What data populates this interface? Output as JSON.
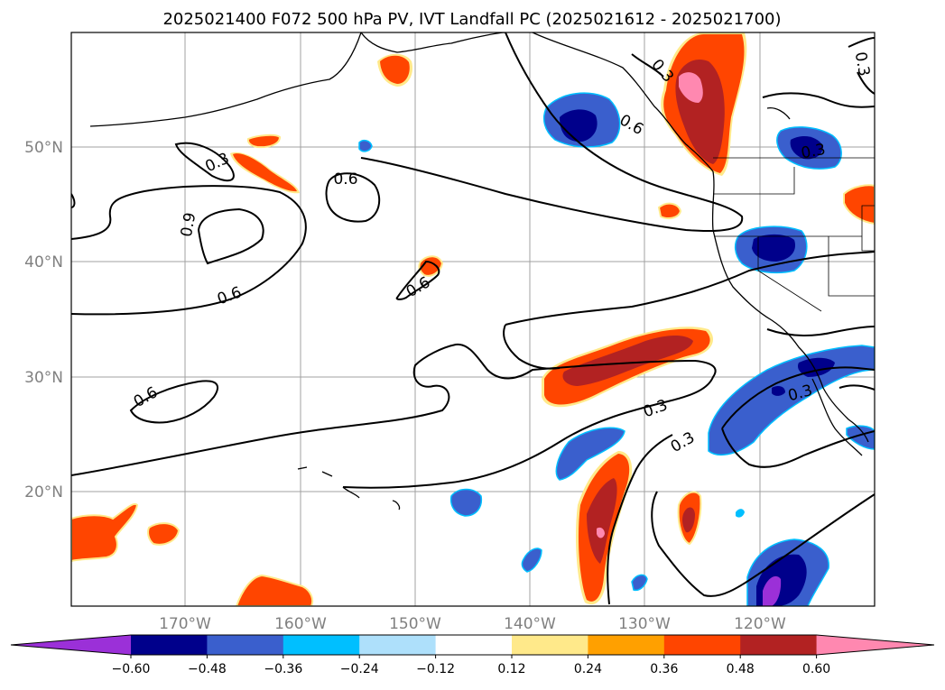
{
  "title": "2025021400 F072 500 hPa PV, IVT Landfall PC (2025021612 - 2025021700)",
  "axes": {
    "lat_labels": [
      "50°N",
      "40°N",
      "30°N",
      "20°N"
    ],
    "lon_labels": [
      "170°W",
      "160°W",
      "150°W",
      "140°W",
      "130°W",
      "120°W"
    ]
  },
  "colorbar": {
    "ticks": [
      "−0.60",
      "−0.48",
      "−0.36",
      "−0.24",
      "−0.12",
      "0.12",
      "0.24",
      "0.36",
      "0.48",
      "0.60"
    ],
    "colors": [
      "#9b30d8",
      "#00008b",
      "#3a5fcd",
      "#00bfff",
      "#aee0fb",
      "#ffffff",
      "#ffe98a",
      "#ffa000",
      "#ff4500",
      "#b22222",
      "#ff88b0"
    ]
  },
  "contour_labels": [
    "0.3",
    "0.6",
    "0.9",
    "0.6",
    "0.6",
    "0.6",
    "0.3",
    "0.6",
    "0.3",
    "0.3",
    "0.3",
    "0.3",
    "0.3"
  ],
  "colors": {
    "positive_1": "#ffe98a",
    "positive_2": "#ffa000",
    "positive_3": "#ff4500",
    "positive_4": "#b22222",
    "positive_5": "#ff88b0",
    "negative_1": "#aee0fb",
    "negative_2": "#00bfff",
    "negative_3": "#3a5fcd",
    "negative_4": "#00008b",
    "negative_5": "#9b30d8"
  }
}
